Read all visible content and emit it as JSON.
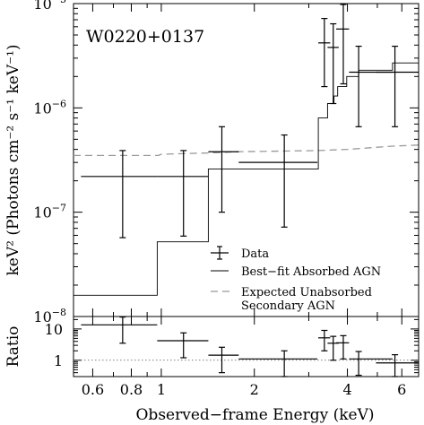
{
  "chart_data": {
    "type": "spectrum",
    "annotation": "W0220+0137",
    "xlabel": "Observed−frame Energy (keV)",
    "xscale": "log",
    "xlim": [
      0.52,
      6.8
    ],
    "xticks": [
      {
        "value": 0.6,
        "label": "0.6"
      },
      {
        "value": 0.8,
        "label": "0.8"
      },
      {
        "value": 1,
        "label": "1"
      },
      {
        "value": 2,
        "label": "2"
      },
      {
        "value": 4,
        "label": "4"
      },
      {
        "value": 6,
        "label": "6"
      }
    ],
    "top_panel": {
      "ylabel": "keV² (Photons cm⁻² s⁻¹ keV⁻¹)",
      "yscale": "log",
      "ylim": [
        1e-08,
        1e-05
      ],
      "yticks": [
        {
          "value": 1e-08,
          "base": "10",
          "exp": "−8"
        },
        {
          "value": 1e-07,
          "base": "10",
          "exp": "−7"
        },
        {
          "value": 1e-06,
          "base": "10",
          "exp": "−6"
        },
        {
          "value": 1e-05,
          "base": "10",
          "exp": "−5"
        }
      ],
      "data": [
        {
          "x": 0.75,
          "xlo": 0.55,
          "xhi": 0.97,
          "y": 2.2e-07,
          "ylo": 5.7e-08,
          "yhi": 3.9e-07
        },
        {
          "x": 1.18,
          "xlo": 0.97,
          "xhi": 1.42,
          "y": 2.2e-07,
          "ylo": 5.9e-08,
          "yhi": 3.9e-07
        },
        {
          "x": 1.57,
          "xlo": 1.42,
          "xhi": 1.78,
          "y": 3.8e-07,
          "ylo": 1e-07,
          "yhi": 6.6e-07
        },
        {
          "x": 2.5,
          "xlo": 1.78,
          "xhi": 3.2,
          "y": 3e-07,
          "ylo": 7.2e-08,
          "yhi": 5.5e-07
        },
        {
          "x": 3.37,
          "xlo": 3.22,
          "xhi": 3.52,
          "y": 4.2e-06,
          "ylo": 1.6e-06,
          "yhi": 7.2e-06
        },
        {
          "x": 3.6,
          "xlo": 3.45,
          "xhi": 3.75,
          "y": 3.8e-06,
          "ylo": 1.1e-06,
          "yhi": 6.4e-06
        },
        {
          "x": 3.88,
          "xlo": 3.68,
          "xhi": 4.05,
          "y": 5.7e-06,
          "ylo": 1.7e-06,
          "yhi": 9.8e-06
        },
        {
          "x": 4.35,
          "xlo": 4.05,
          "xhi": 5.6,
          "y": 2.2e-06,
          "ylo": 6.6e-07,
          "yhi": 3.9e-06
        },
        {
          "x": 5.7,
          "xlo": 4.95,
          "xhi": 6.8,
          "y": 2.2e-06,
          "ylo": 6.6e-07,
          "yhi": 3.9e-06
        }
      ],
      "model": [
        [
          0.52,
          1.6e-08
        ],
        [
          0.97,
          1.6e-08
        ],
        [
          0.97,
          5.2e-08
        ],
        [
          1.42,
          5.2e-08
        ],
        [
          1.42,
          2.6e-07
        ],
        [
          3.22,
          2.6e-07
        ],
        [
          3.22,
          8e-07
        ],
        [
          3.45,
          8e-07
        ],
        [
          3.45,
          1.1e-06
        ],
        [
          3.62,
          1.1e-06
        ],
        [
          3.62,
          1.3e-06
        ],
        [
          3.72,
          1.3e-06
        ],
        [
          3.72,
          1.6e-06
        ],
        [
          3.98,
          1.6e-06
        ],
        [
          3.98,
          2e-06
        ],
        [
          4.35,
          2e-06
        ],
        [
          4.35,
          2.3e-06
        ],
        [
          5.6,
          2.3e-06
        ],
        [
          5.6,
          2.7e-06
        ],
        [
          6.8,
          2.7e-06
        ]
      ],
      "unabsorbed": [
        [
          0.52,
          3.5e-07
        ],
        [
          0.98,
          3.5e-07
        ],
        [
          1.0,
          3.6e-07
        ],
        [
          1.42,
          3.7e-07
        ],
        [
          1.78,
          3.8e-07
        ],
        [
          3.22,
          3.9e-07
        ],
        [
          4.0,
          4e-07
        ],
        [
          5.6,
          4.3e-07
        ],
        [
          6.8,
          4.4e-07
        ]
      ],
      "legend": {
        "position": "lower-right",
        "entries": [
          {
            "style": "errorbar",
            "lines": [
              "Data"
            ]
          },
          {
            "style": "solid",
            "lines": [
              "Best−fit Absorbed AGN"
            ]
          },
          {
            "style": "dashed",
            "lines": [
              "Expected Unabsorbed",
              "Secondary AGN"
            ]
          }
        ]
      }
    },
    "bottom_panel": {
      "ylabel": "Ratio",
      "yscale": "log",
      "ylim": [
        0.3,
        25
      ],
      "yticks": [
        {
          "value": 1,
          "label": "1"
        },
        {
          "value": 10,
          "label": "10"
        }
      ],
      "reference": 1,
      "data": [
        {
          "x": 0.75,
          "xlo": 0.55,
          "xhi": 0.97,
          "y": 13.5,
          "ylo": 3.5,
          "yhi": 24
        },
        {
          "x": 1.18,
          "xlo": 0.97,
          "xhi": 1.42,
          "y": 4.2,
          "ylo": 1.2,
          "yhi": 7.5
        },
        {
          "x": 1.57,
          "xlo": 1.42,
          "xhi": 1.78,
          "y": 1.45,
          "ylo": 0.4,
          "yhi": 2.6
        },
        {
          "x": 2.5,
          "xlo": 1.78,
          "xhi": 3.2,
          "y": 1.1,
          "ylo": 0.3,
          "yhi": 2.0
        },
        {
          "x": 3.37,
          "xlo": 3.22,
          "xhi": 3.52,
          "y": 5.2,
          "ylo": 2.0,
          "yhi": 9.0
        },
        {
          "x": 3.6,
          "xlo": 3.45,
          "xhi": 3.75,
          "y": 3.5,
          "ylo": 1.0,
          "yhi": 5.8
        },
        {
          "x": 3.88,
          "xlo": 3.68,
          "xhi": 4.05,
          "y": 3.6,
          "ylo": 1.1,
          "yhi": 6.1
        },
        {
          "x": 4.35,
          "xlo": 4.05,
          "xhi": 5.6,
          "y": 1.1,
          "ylo": 0.33,
          "yhi": 1.9
        },
        {
          "x": 5.7,
          "xlo": 4.95,
          "xhi": 6.8,
          "y": 0.82,
          "ylo": 0.3,
          "yhi": 1.5
        }
      ]
    }
  }
}
